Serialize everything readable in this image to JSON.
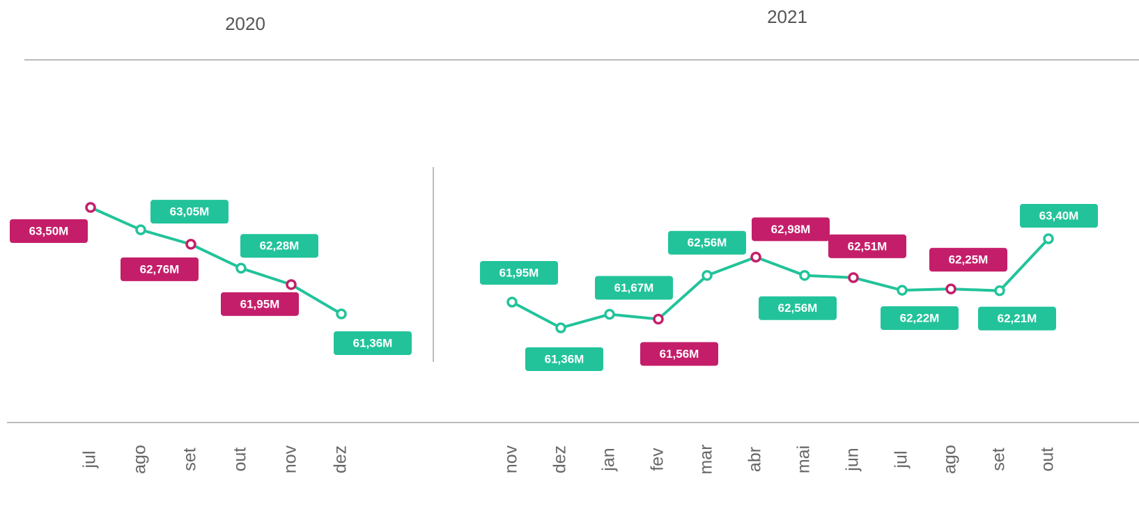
{
  "chart_data": [
    {
      "type": "line",
      "title": "2020",
      "categories": [
        "jul",
        "ago",
        "set",
        "out",
        "nov",
        "dez"
      ],
      "series": [
        {
          "color": "#22c39a",
          "values": [
            63.5,
            63.05,
            62.76,
            62.28,
            61.95,
            61.36
          ],
          "value_labels": [
            "63,50M",
            "63,05M",
            "62,76M",
            "62,28M",
            "61,95M",
            "61,36M"
          ],
          "point_colors": [
            "#c41e6a",
            "#22c39a",
            "#c41e6a",
            "#22c39a",
            "#c41e6a",
            "#22c39a"
          ]
        }
      ]
    },
    {
      "type": "line",
      "title": "2021",
      "categories": [
        "nov",
        "dez",
        "jan",
        "fev",
        "mar",
        "abr",
        "mai",
        "jun",
        "jul",
        "ago",
        "set",
        "out"
      ],
      "series": [
        {
          "color": "#22c39a",
          "values": [
            61.95,
            61.36,
            61.67,
            61.56,
            62.56,
            62.98,
            62.56,
            62.51,
            62.22,
            62.25,
            62.21,
            63.4
          ],
          "value_labels": [
            "61,95M",
            "61,36M",
            "61,67M",
            "61,56M",
            "62,56M",
            "62,98M",
            "62,56M",
            "62,51M",
            "62,22M",
            "62,25M",
            "62,21M",
            "63,40M"
          ],
          "point_colors": [
            "#22c39a",
            "#22c39a",
            "#22c39a",
            "#c41e6a",
            "#22c39a",
            "#c41e6a",
            "#22c39a",
            "#c41e6a",
            "#22c39a",
            "#c41e6a",
            "#22c39a",
            "#22c39a"
          ]
        }
      ]
    }
  ]
}
